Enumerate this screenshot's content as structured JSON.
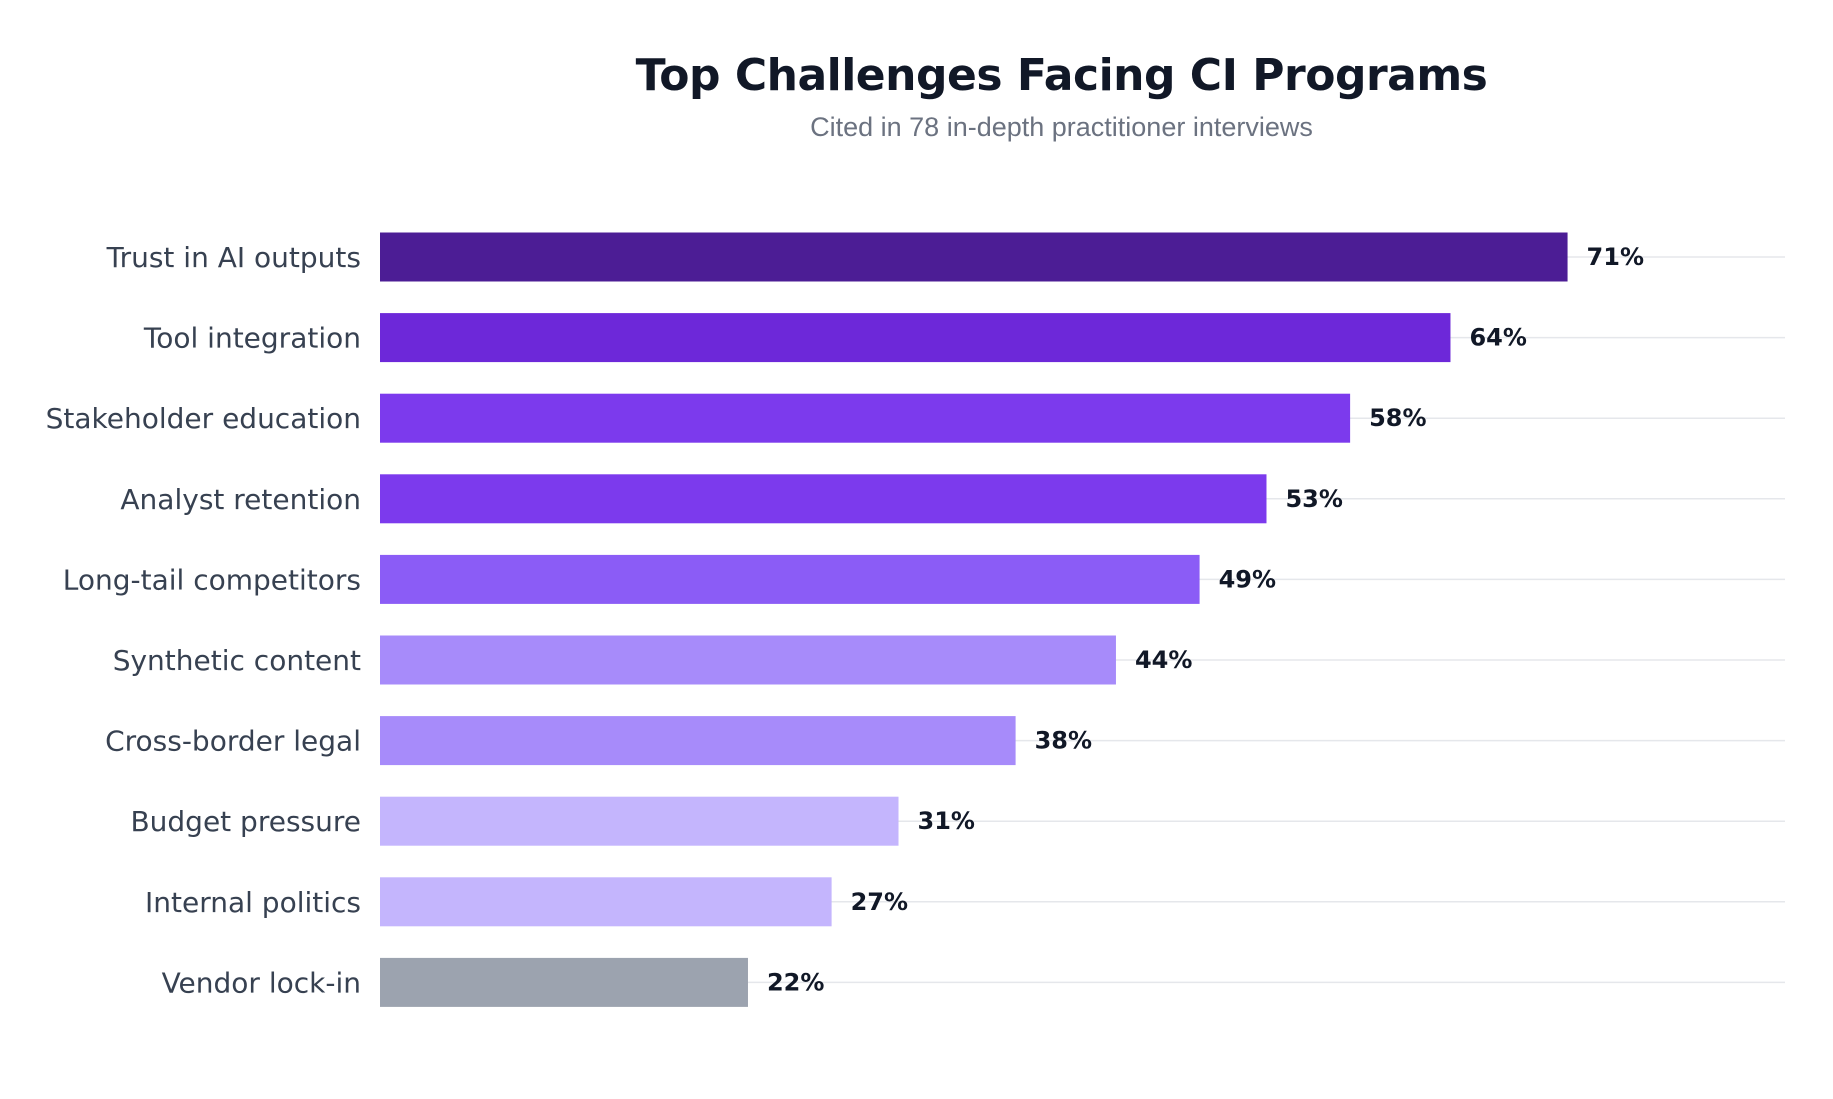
{
  "chart_data": {
    "type": "bar",
    "orientation": "horizontal",
    "title": "Top Challenges Facing CI Programs",
    "subtitle": "Cited in 78 in-depth practitioner interviews",
    "xlabel": "",
    "ylabel": "",
    "value_suffix": "%",
    "xlim": [
      0,
      84
    ],
    "grid": true,
    "categories": [
      "Trust in AI outputs",
      "Tool integration",
      "Stakeholder education",
      "Analyst retention",
      "Long-tail competitors",
      "Synthetic content",
      "Cross-border legal",
      "Budget pressure",
      "Internal politics",
      "Vendor lock-in"
    ],
    "values": [
      71,
      64,
      58,
      53,
      49,
      44,
      38,
      31,
      27,
      22
    ],
    "bar_colors": [
      "#4c1d95",
      "#6d28d9",
      "#7c3aed",
      "#7c3aed",
      "#8b5cf6",
      "#a78bfa",
      "#a78bfa",
      "#c4b5fd",
      "#c4b5fd",
      "#9ca3af"
    ]
  }
}
